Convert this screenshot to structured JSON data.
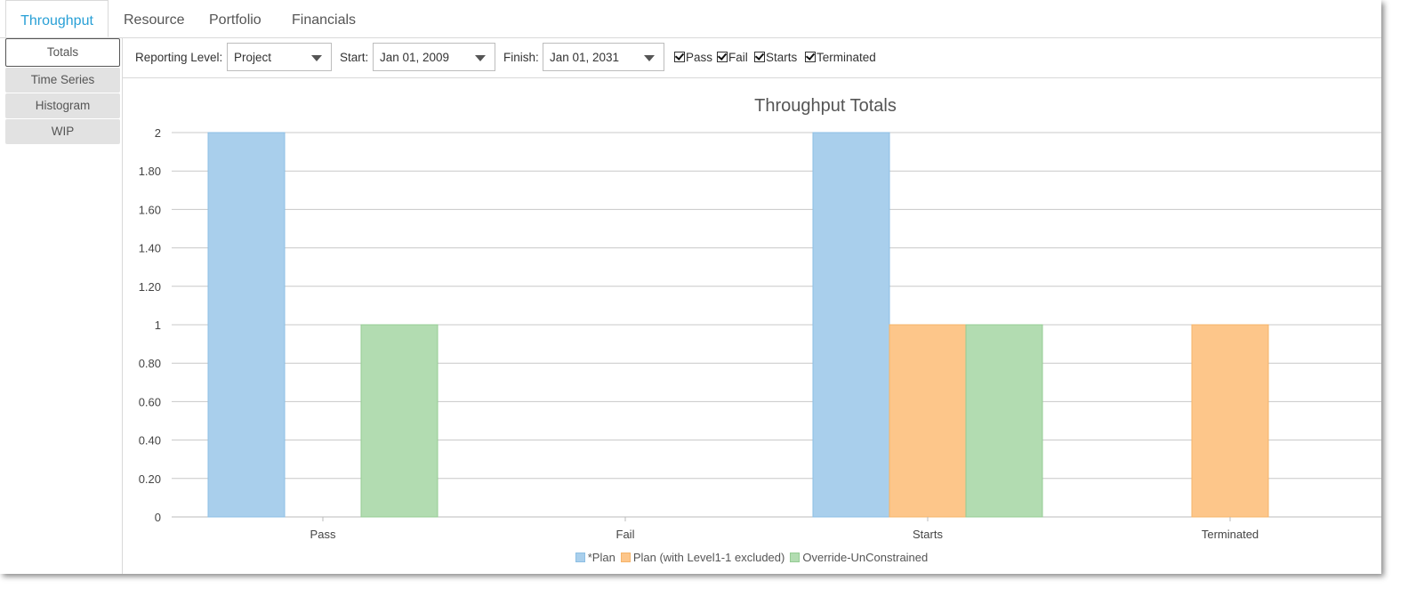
{
  "tabs": [
    {
      "label": "Throughput",
      "active": true
    },
    {
      "label": "Resource",
      "active": false
    },
    {
      "label": "Portfolio",
      "active": false
    },
    {
      "label": "Financials",
      "active": false
    }
  ],
  "leftnav": [
    {
      "label": "Totals",
      "active": true
    },
    {
      "label": "Time Series",
      "active": false
    },
    {
      "label": "Histogram",
      "active": false
    },
    {
      "label": "WIP",
      "active": false
    }
  ],
  "toolbar": {
    "reporting_label": "Reporting Level:",
    "reporting_value": "Project",
    "start_label": "Start:",
    "start_value": "Jan 01, 2009",
    "finish_label": "Finish:",
    "finish_value": "Jan 01, 2031",
    "checks": [
      {
        "label": "Pass",
        "checked": true
      },
      {
        "label": "Fail",
        "checked": true
      },
      {
        "label": "Starts",
        "checked": true
      },
      {
        "label": "Terminated",
        "checked": true
      }
    ]
  },
  "chart_data": {
    "type": "bar",
    "title": "Throughput Totals",
    "categories": [
      "Pass",
      "Fail",
      "Starts",
      "Terminated"
    ],
    "series": [
      {
        "name": "*Plan",
        "color": "#a9cfec",
        "stroke": "#8dbfe4",
        "values": [
          2,
          0,
          2,
          0
        ]
      },
      {
        "name": "Plan (with Level1-1 excluded)",
        "color": "#fdc68a",
        "stroke": "#f5b46a",
        "values": [
          0,
          0,
          1,
          1
        ]
      },
      {
        "name": "Override-UnConstrained",
        "color": "#b2dcb1",
        "stroke": "#95cc94",
        "values": [
          1,
          0,
          1,
          0
        ]
      }
    ],
    "ylim": [
      0,
      2
    ],
    "yticks": [
      "0",
      "0.20",
      "0.40",
      "0.60",
      "0.80",
      "1",
      "1.20",
      "1.40",
      "1.60",
      "1.80",
      "2"
    ],
    "grid": true,
    "legend": "bottom"
  }
}
